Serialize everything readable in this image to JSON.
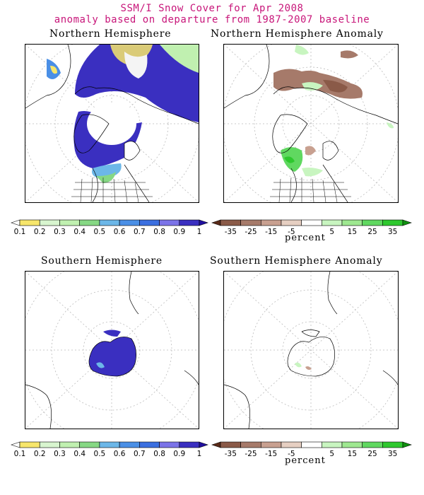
{
  "figure": {
    "title_line1": "SSM/I Snow Cover for Apr 2008",
    "title_line2": "anomaly based on departure from 1987-2007 baseline",
    "title_color": "#c8167a"
  },
  "panels": {
    "nh": {
      "title": "Northern Hemisphere"
    },
    "nha": {
      "title": "Northern Hemisphere Anomaly"
    },
    "sh": {
      "title": "Southern Hemisphere"
    },
    "sha": {
      "title": "Southern Hemisphere Anomaly"
    }
  },
  "colorbars": {
    "cover": {
      "labels": [
        "0.1",
        "0.2",
        "0.3",
        "0.4",
        "0.5",
        "0.6",
        "0.7",
        "0.8",
        "0.9",
        "1"
      ],
      "colors": [
        "#ffffff",
        "#f7e66b",
        "#d8f5cf",
        "#c0f0b0",
        "#86d884",
        "#6cb7e8",
        "#4a8fe6",
        "#3b6fe0",
        "#7b73e8",
        "#3a2fc0",
        "#2010a0"
      ]
    },
    "anomaly": {
      "labels": [
        "-35",
        "-25",
        "-15",
        "-5",
        "5",
        "15",
        "25",
        "35"
      ],
      "unit": "percent",
      "colors": [
        "#5a2a18",
        "#8a5a48",
        "#a67a6a",
        "#c8a090",
        "#e6cfc2",
        "#ffffff",
        "#c8f5c0",
        "#9ee890",
        "#60d860",
        "#2ec82e",
        "#109010"
      ]
    }
  },
  "legend_colors": {
    "snow_high": "#3a2fc0",
    "snow_mid": "#6cb7e8",
    "snow_low": "#f7e66b",
    "anomaly_negative": "#a67a6a",
    "anomaly_positive": "#60d860"
  }
}
